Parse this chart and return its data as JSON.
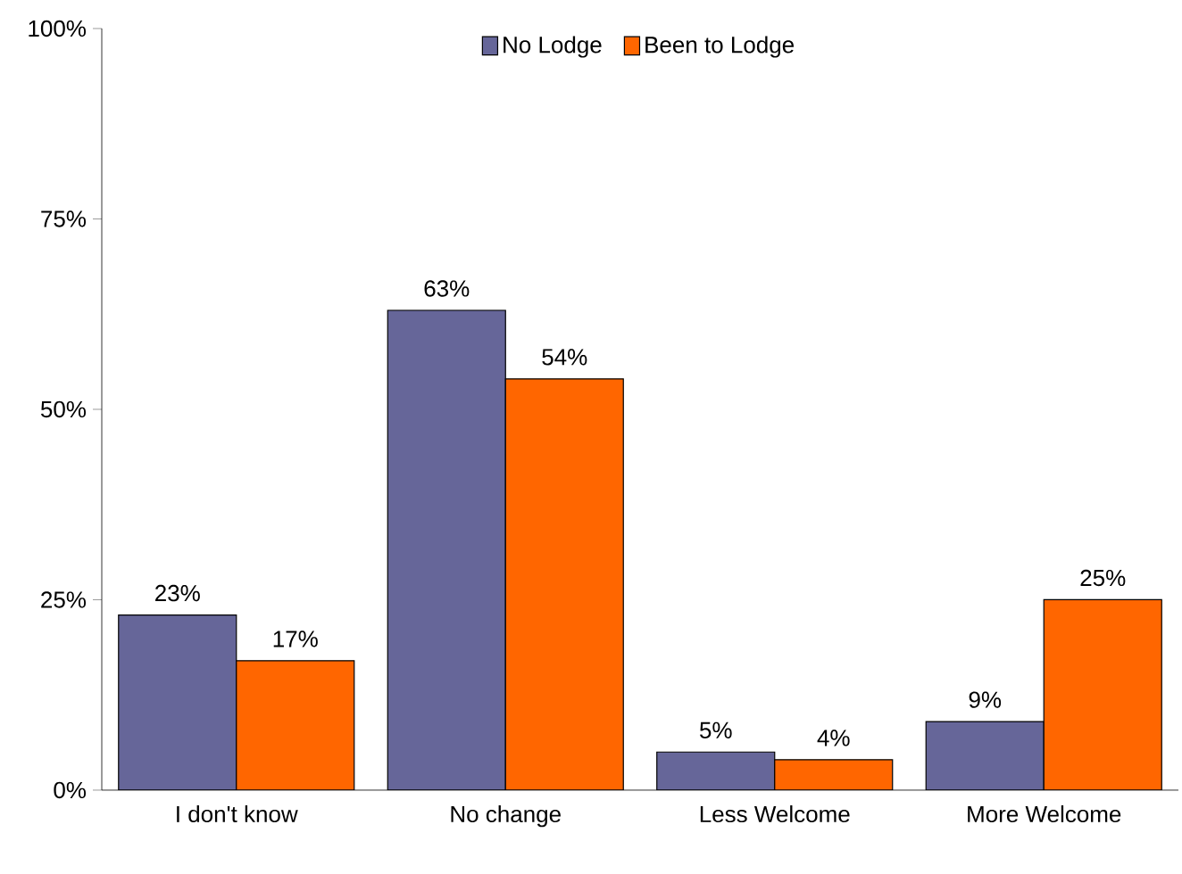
{
  "chart_data": {
    "type": "bar",
    "categories": [
      "I don't know",
      "No change",
      "Less Welcome",
      "More Welcome"
    ],
    "series": [
      {
        "name": "No Lodge",
        "color": "#666699",
        "values": [
          23,
          63,
          5,
          9
        ],
        "value_labels": [
          "23%",
          "63%",
          "5%",
          "9%"
        ]
      },
      {
        "name": "Been to Lodge",
        "color": "#ff6600",
        "values": [
          17,
          54,
          4,
          25
        ],
        "value_labels": [
          "17%",
          "54%",
          "4%",
          "25%"
        ]
      }
    ],
    "ylim": [
      0,
      100
    ],
    "yticks": [
      {
        "value": 0,
        "label": "0%"
      },
      {
        "value": 25,
        "label": "25%"
      },
      {
        "value": 50,
        "label": "50%"
      },
      {
        "value": 75,
        "label": "75%"
      },
      {
        "value": 100,
        "label": "100%"
      }
    ],
    "grid": false,
    "legend": "top"
  }
}
